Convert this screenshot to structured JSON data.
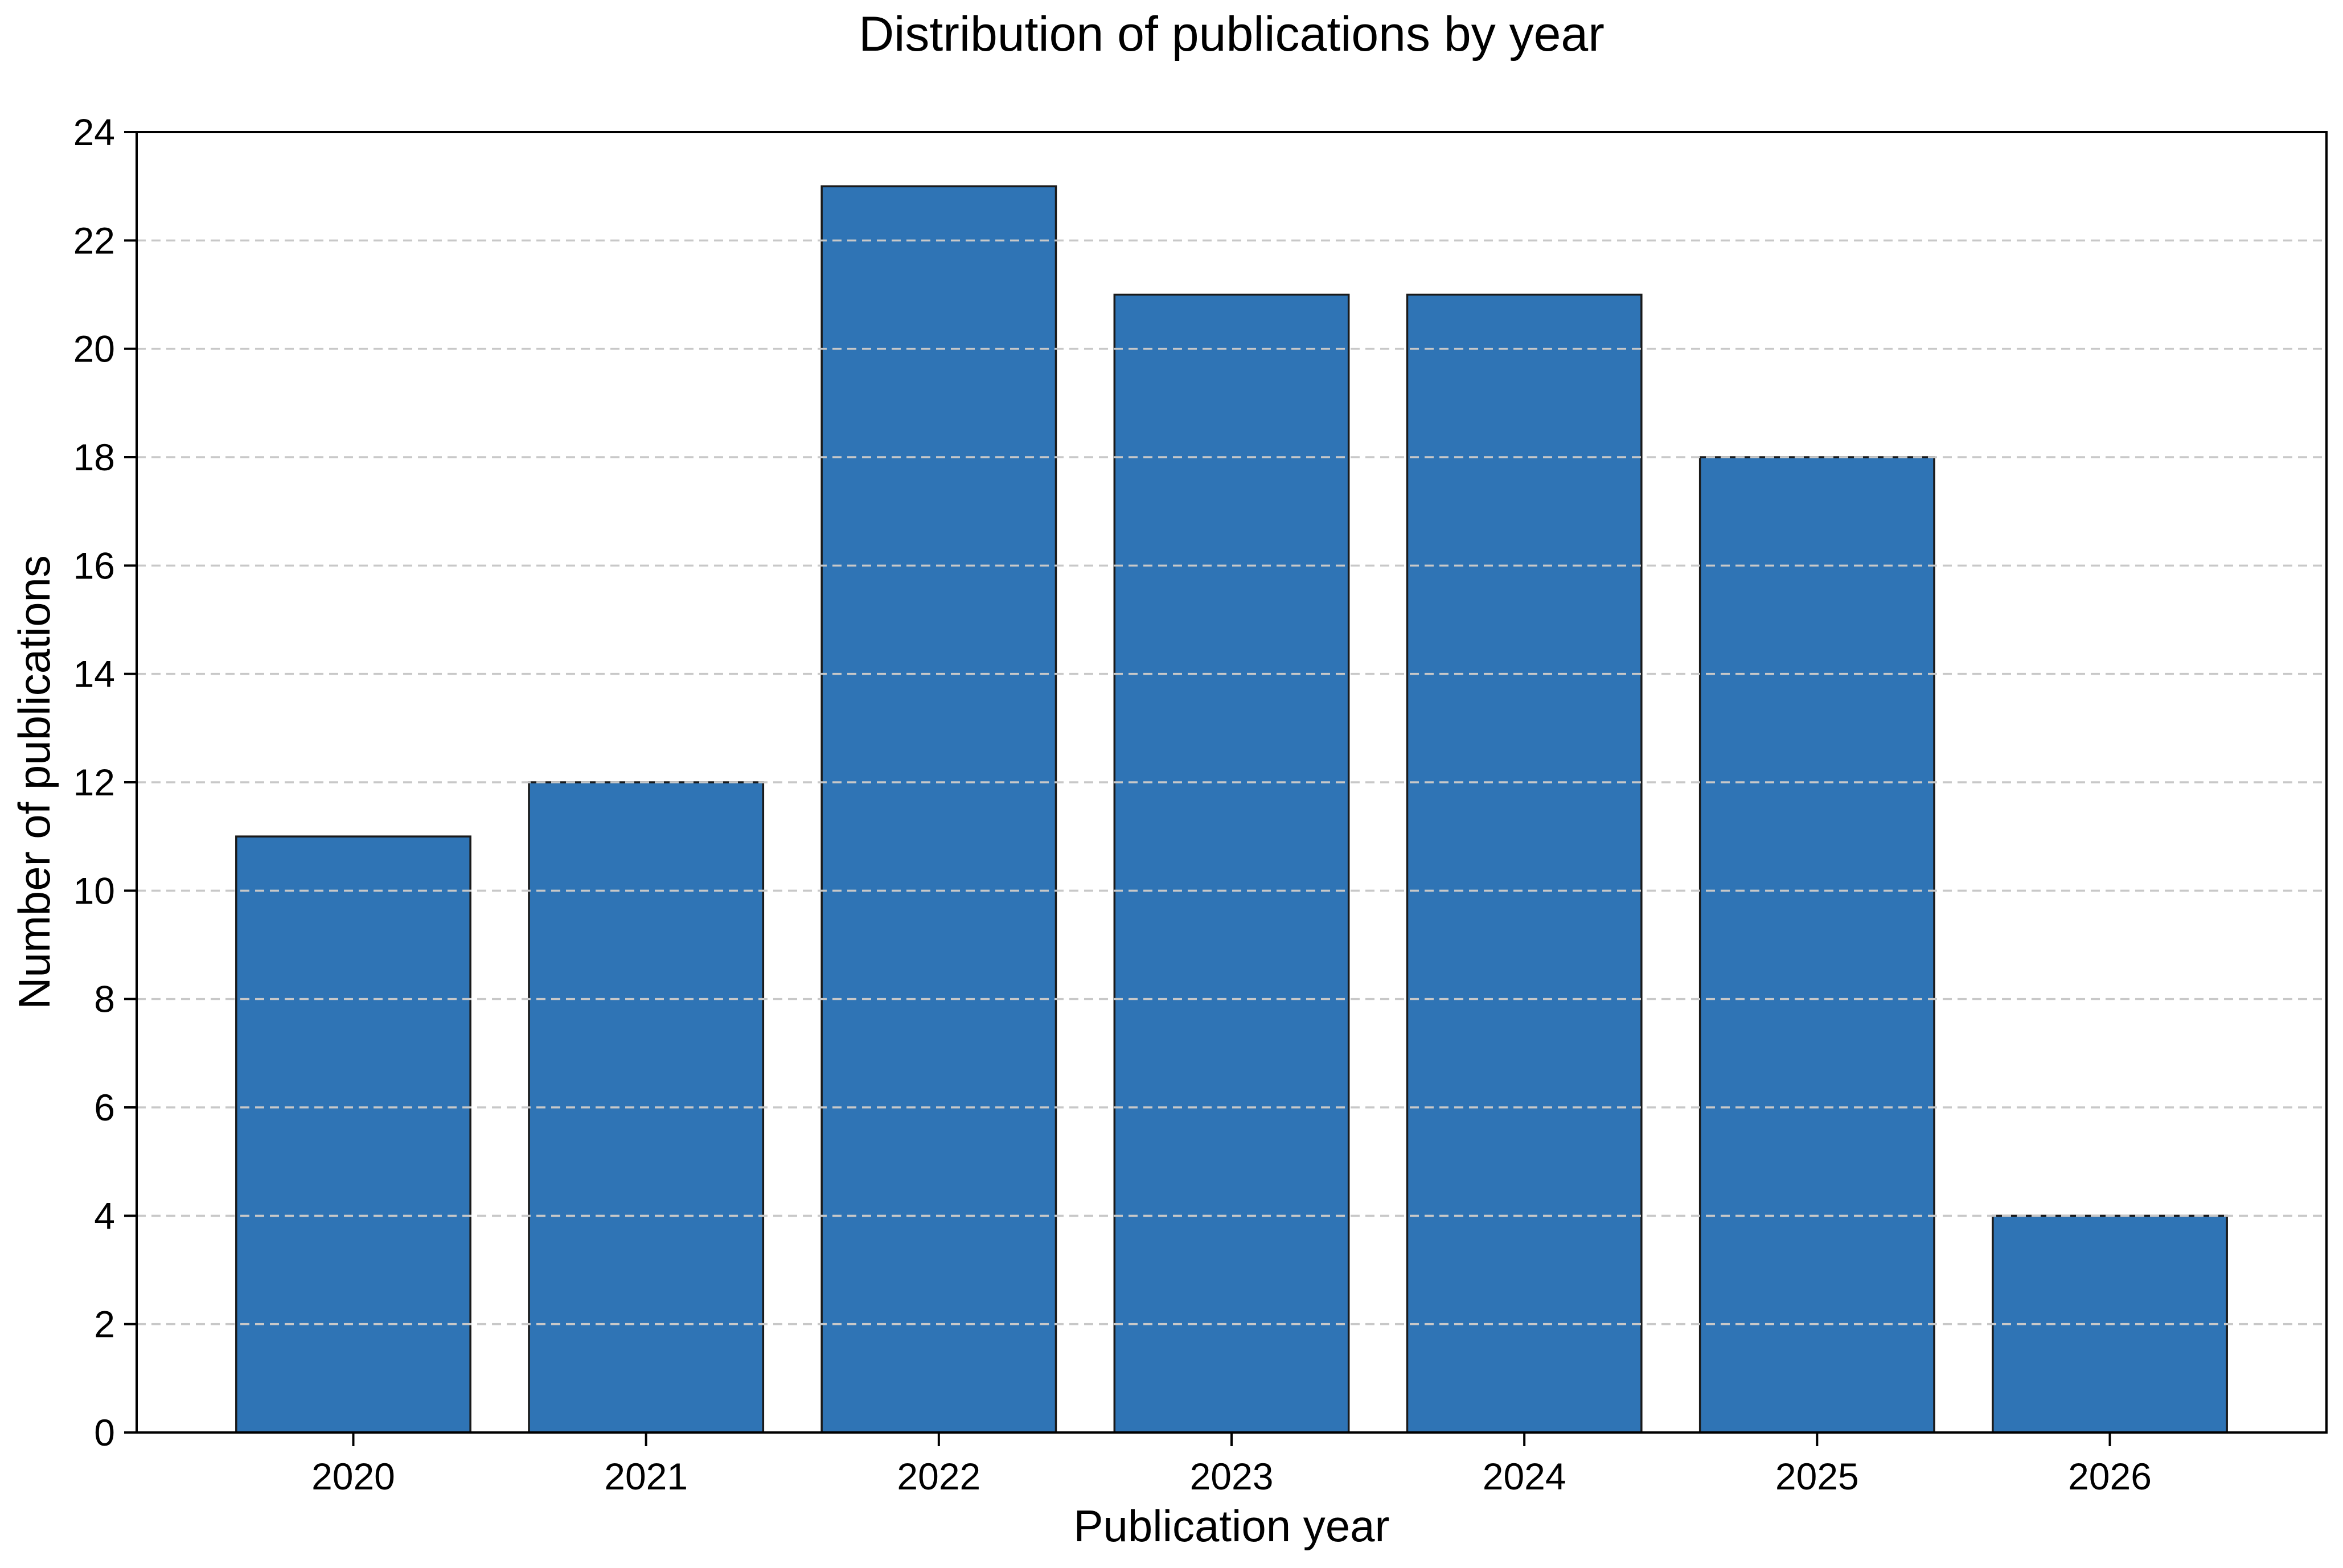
{
  "chart_data": {
    "type": "bar",
    "title": "Distribution of publications by year",
    "xlabel": "Publication year",
    "ylabel": "Number of publications",
    "categories": [
      "2020",
      "2021",
      "2022",
      "2023",
      "2024",
      "2025",
      "2026"
    ],
    "values": [
      11,
      12,
      23,
      21,
      21,
      18,
      4
    ],
    "ylim": [
      0,
      24
    ],
    "ytick_step": 2,
    "yticks": [
      0,
      2,
      4,
      6,
      8,
      10,
      12,
      14,
      16,
      18,
      20,
      22,
      24
    ],
    "grid": "horizontal dashed gridlines every 2 units, drawn above bars",
    "legend": "none",
    "colors": {
      "bar_fill": "#2f74b5",
      "bar_edge": "#1a1a1a",
      "grid_line": "#c8c8c8",
      "axis": "#000000",
      "text": "#000000",
      "background": "#ffffff"
    }
  }
}
